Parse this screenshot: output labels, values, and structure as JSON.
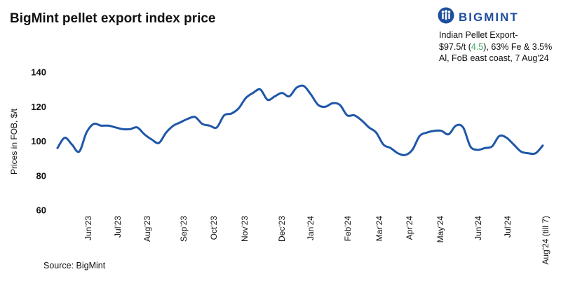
{
  "header": {
    "title": "BigMint pellet export index price",
    "logo_text": "BIGMINT",
    "logo_icon": "bigmint-people-icon",
    "brand_color": "#1f4e9c"
  },
  "note": {
    "line1_prefix": "Indian Pellet Export-",
    "price": "$97.5/t",
    "change": "4.5",
    "line2_suffix": ", 63% Fe & 3.5%",
    "line3": "Al, FoB east coast, 7 Aug'24",
    "change_color": "#3aa55d"
  },
  "source": "Source: BigMint",
  "chart_data": {
    "type": "line",
    "title": "BigMint pellet export index price",
    "ylabel": "Prices in FOB, $/t",
    "xlabel": "",
    "ylim": [
      60,
      140
    ],
    "yticks": [
      60,
      80,
      100,
      120,
      140
    ],
    "grid": false,
    "line_color": "#1f57a8",
    "x_tick_labels": [
      "Jun'23",
      "Jul'23",
      "Aug'23",
      "Sep'23",
      "Oct'23",
      "Nov'23",
      "Dec'23",
      "Jan'24",
      "Feb'24",
      "Mar'24",
      "Apr'24",
      "May'24",
      "Jun'24",
      "Jul'24",
      "Aug'24 (till 7)"
    ],
    "series": [
      {
        "values": [
          96,
          102,
          98,
          94,
          105,
          110,
          109,
          109,
          108,
          107,
          107,
          108,
          104,
          101,
          99,
          105,
          109,
          111,
          113,
          114,
          110,
          109,
          108,
          115,
          116,
          119,
          125,
          128,
          130,
          124,
          126,
          128,
          126,
          131,
          132,
          127,
          121,
          120,
          122,
          121,
          115,
          115,
          112,
          108,
          105,
          98,
          96,
          93,
          92,
          95,
          103,
          105,
          106,
          106,
          104,
          109,
          108,
          97,
          95,
          96,
          97,
          103,
          102,
          98,
          94,
          93,
          93,
          97.5
        ]
      }
    ]
  }
}
